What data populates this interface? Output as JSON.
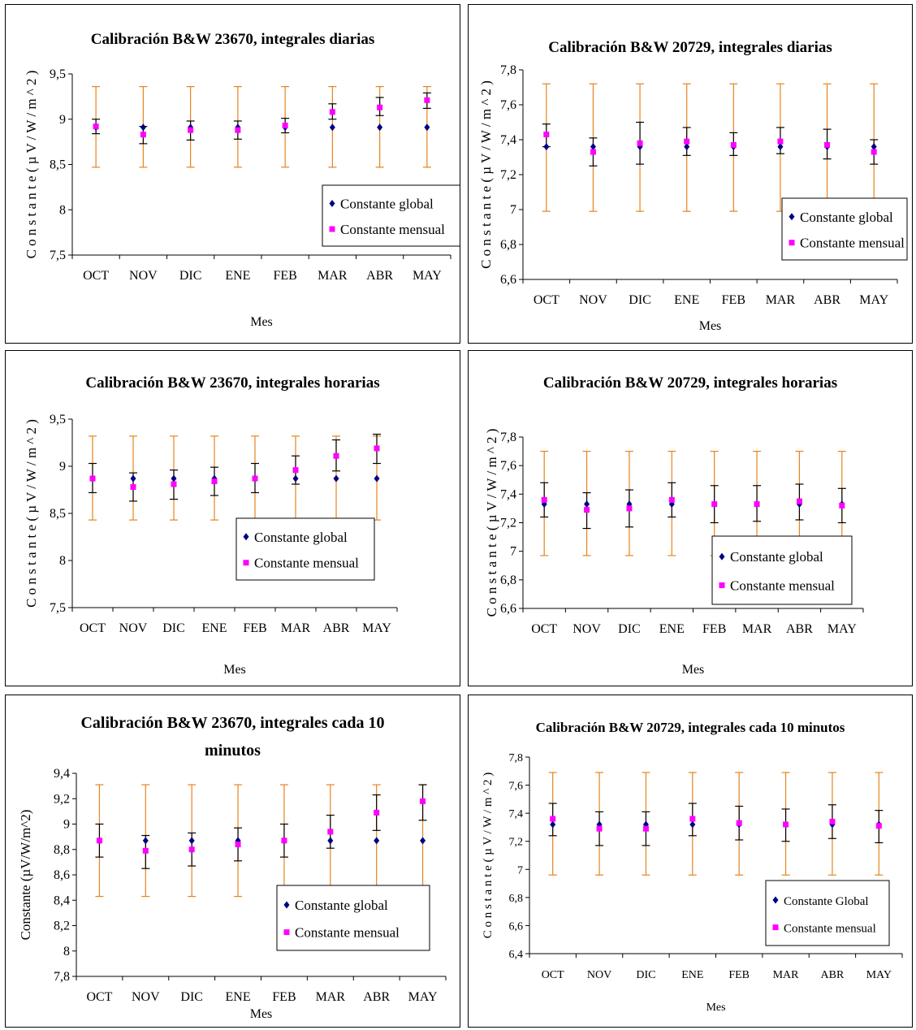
{
  "chart_data": [
    {
      "type": "scatter",
      "title": "Calibración B&W 23670, integrales diarias",
      "xlabel": "Mes",
      "ylabel": "C o n s t a n t e  ( µ V / W / m ^ 2 )",
      "categories": [
        "OCT",
        "NOV",
        "DIC",
        "ENE",
        "FEB",
        "MAR",
        "ABR",
        "MAY"
      ],
      "yticks": [
        "7,5",
        "8",
        "8,5",
        "9",
        "9,5"
      ],
      "ylim": [
        7.5,
        9.5
      ],
      "legend": "bottom-right",
      "series": [
        {
          "name": "Constante global",
          "marker": "diamond",
          "color": "#000080",
          "values": [
            8.91,
            8.91,
            8.91,
            8.91,
            8.91,
            8.91,
            8.91,
            8.91
          ],
          "err_low": [
            8.47,
            8.47,
            8.47,
            8.47,
            8.47,
            8.47,
            8.47,
            8.47
          ],
          "err_high": [
            9.36,
            9.36,
            9.36,
            9.36,
            9.36,
            9.36,
            9.36,
            9.36
          ]
        },
        {
          "name": "Constante mensual",
          "marker": "square",
          "color": "#ff00ff",
          "values": [
            8.92,
            8.83,
            8.88,
            8.88,
            8.93,
            9.08,
            9.13,
            9.21
          ],
          "err_low": [
            8.84,
            8.73,
            8.77,
            8.78,
            8.85,
            9.0,
            9.04,
            9.12
          ],
          "err_high": [
            9.0,
            8.92,
            8.98,
            8.98,
            9.01,
            9.17,
            9.24,
            9.29
          ]
        }
      ]
    },
    {
      "type": "scatter",
      "title": "Calibración B&W 20729, integrales diarias",
      "xlabel": "Mes",
      "ylabel": "C o n s t a n t e  ( µ V / W / m ^ 2 )",
      "categories": [
        "OCT",
        "NOV",
        "DIC",
        "ENE",
        "FEB",
        "MAR",
        "ABR",
        "MAY"
      ],
      "yticks": [
        "6,6",
        "6,8",
        "7",
        "7,2",
        "7,4",
        "7,6",
        "7,8"
      ],
      "ylim": [
        6.6,
        7.8
      ],
      "legend": "bottom-right",
      "series": [
        {
          "name": "Constante global",
          "marker": "diamond",
          "color": "#000080",
          "values": [
            7.36,
            7.36,
            7.36,
            7.36,
            7.36,
            7.36,
            7.36,
            7.36
          ],
          "err_low": [
            6.99,
            6.99,
            6.99,
            6.99,
            6.99,
            6.99,
            6.99,
            6.99
          ],
          "err_high": [
            7.72,
            7.72,
            7.72,
            7.72,
            7.72,
            7.72,
            7.72,
            7.72
          ]
        },
        {
          "name": "Constante mensual",
          "marker": "square",
          "color": "#ff00ff",
          "values": [
            7.43,
            7.33,
            7.38,
            7.39,
            7.37,
            7.39,
            7.37,
            7.33
          ],
          "err_low": [
            7.36,
            7.25,
            7.26,
            7.31,
            7.31,
            7.32,
            7.29,
            7.26
          ],
          "err_high": [
            7.49,
            7.41,
            7.5,
            7.47,
            7.44,
            7.47,
            7.46,
            7.4
          ]
        }
      ]
    },
    {
      "type": "scatter",
      "title": "Calibración B&W 23670, integrales horarias",
      "xlabel": "Mes",
      "ylabel": "C o n s t a n t e  ( µ V / W / m ^ 2 )",
      "categories": [
        "OCT",
        "NOV",
        "DIC",
        "ENE",
        "FEB",
        "MAR",
        "ABR",
        "MAY"
      ],
      "yticks": [
        "7,5",
        "8",
        "8,5",
        "9",
        "9,5"
      ],
      "ylim": [
        7.5,
        9.5
      ],
      "legend": "bottom-right",
      "series": [
        {
          "name": "Constante global",
          "marker": "diamond",
          "color": "#000080",
          "values": [
            8.87,
            8.87,
            8.87,
            8.87,
            8.87,
            8.87,
            8.87,
            8.87
          ],
          "err_low": [
            8.43,
            8.43,
            8.43,
            8.43,
            8.43,
            8.43,
            8.43,
            8.43
          ],
          "err_high": [
            9.32,
            9.32,
            9.32,
            9.32,
            9.32,
            9.32,
            9.32,
            9.32
          ]
        },
        {
          "name": "Constante mensual",
          "marker": "square",
          "color": "#ff00ff",
          "values": [
            8.87,
            8.78,
            8.81,
            8.84,
            8.87,
            8.96,
            9.11,
            9.19
          ],
          "err_low": [
            8.72,
            8.63,
            8.65,
            8.69,
            8.72,
            8.81,
            8.95,
            9.03
          ],
          "err_high": [
            9.03,
            8.93,
            8.96,
            8.99,
            9.03,
            9.11,
            9.28,
            9.34
          ]
        }
      ]
    },
    {
      "type": "scatter",
      "title": "Calibración B&W 20729, integrales horarias",
      "xlabel": "Mes",
      "ylabel": "C o n s t a n t e  ( µ V / W / m ^ 2 )",
      "categories": [
        "OCT",
        "NOV",
        "DIC",
        "ENE",
        "FEB",
        "MAR",
        "ABR",
        "MAY"
      ],
      "yticks": [
        "6,6",
        "6,8",
        "7",
        "7,2",
        "7,4",
        "7,6",
        "7,8"
      ],
      "ylim": [
        6.6,
        7.8
      ],
      "legend": "bottom-right",
      "series": [
        {
          "name": "Constante global",
          "marker": "diamond",
          "color": "#000080",
          "values": [
            7.33,
            7.33,
            7.33,
            7.33,
            7.33,
            7.33,
            7.33,
            7.33
          ],
          "err_low": [
            6.97,
            6.97,
            6.97,
            6.97,
            6.97,
            6.97,
            6.97,
            6.97
          ],
          "err_high": [
            7.7,
            7.7,
            7.7,
            7.7,
            7.7,
            7.7,
            7.7,
            7.7
          ]
        },
        {
          "name": "Constante mensual",
          "marker": "square",
          "color": "#ff00ff",
          "values": [
            7.36,
            7.29,
            7.3,
            7.36,
            7.33,
            7.33,
            7.35,
            7.32
          ],
          "err_low": [
            7.24,
            7.16,
            7.17,
            7.24,
            7.2,
            7.21,
            7.22,
            7.2
          ],
          "err_high": [
            7.48,
            7.41,
            7.43,
            7.48,
            7.46,
            7.46,
            7.47,
            7.44
          ]
        }
      ]
    },
    {
      "type": "scatter",
      "title": "Calibración B&W 23670, integrales cada 10",
      "title_line2": "minutos",
      "xlabel": "Mes",
      "ylabel": "Constante (µV/W/m^2)",
      "categories": [
        "OCT",
        "NOV",
        "DIC",
        "ENE",
        "FEB",
        "MAR",
        "ABR",
        "MAY"
      ],
      "yticks": [
        "7,8",
        "8",
        "8,2",
        "8,4",
        "8,6",
        "8,8",
        "9",
        "9,2",
        "9,4"
      ],
      "ylim": [
        7.8,
        9.4
      ],
      "legend": "bottom-right",
      "series": [
        {
          "name": "Constante global",
          "marker": "diamond",
          "color": "#000080",
          "values": [
            8.87,
            8.87,
            8.87,
            8.87,
            8.87,
            8.87,
            8.87,
            8.87
          ],
          "err_low": [
            8.43,
            8.43,
            8.43,
            8.43,
            8.43,
            8.43,
            8.43,
            8.43
          ],
          "err_high": [
            9.31,
            9.31,
            9.31,
            9.31,
            9.31,
            9.31,
            9.31,
            9.31
          ]
        },
        {
          "name": "Constante mensual",
          "marker": "square",
          "color": "#ff00ff",
          "values": [
            8.87,
            8.79,
            8.8,
            8.84,
            8.87,
            8.94,
            9.09,
            9.18
          ],
          "err_low": [
            8.74,
            8.65,
            8.67,
            8.71,
            8.74,
            8.81,
            8.95,
            9.03
          ],
          "err_high": [
            9.0,
            8.91,
            8.93,
            8.97,
            9.0,
            9.07,
            9.23,
            9.31
          ]
        }
      ]
    },
    {
      "type": "scatter",
      "title": "Calibración B&W 20729, integrales cada 10 minutos",
      "xlabel": "Mes",
      "ylabel": "C o n s t a n t e  ( µ V / W / m ^ 2 )",
      "categories": [
        "OCT",
        "NOV",
        "DIC",
        "ENE",
        "FEB",
        "MAR",
        "ABR",
        "MAY"
      ],
      "yticks": [
        "6,4",
        "6,6",
        "6,8",
        "7",
        "7,2",
        "7,4",
        "7,6",
        "7,8"
      ],
      "ylim": [
        6.4,
        7.8
      ],
      "legend": "bottom-right",
      "series": [
        {
          "name": "Constante Global",
          "marker": "diamond",
          "color": "#000080",
          "values": [
            7.32,
            7.32,
            7.32,
            7.32,
            7.32,
            7.32,
            7.32,
            7.32
          ],
          "err_low": [
            6.96,
            6.96,
            6.96,
            6.96,
            6.96,
            6.96,
            6.96,
            6.96
          ],
          "err_high": [
            7.69,
            7.69,
            7.69,
            7.69,
            7.69,
            7.69,
            7.69,
            7.69
          ]
        },
        {
          "name": "Constante mensual",
          "marker": "square",
          "color": "#ff00ff",
          "values": [
            7.36,
            7.29,
            7.29,
            7.36,
            7.33,
            7.32,
            7.34,
            7.31
          ],
          "err_low": [
            7.24,
            7.17,
            7.17,
            7.24,
            7.21,
            7.2,
            7.22,
            7.19
          ],
          "err_high": [
            7.47,
            7.41,
            7.41,
            7.47,
            7.45,
            7.43,
            7.46,
            7.42
          ]
        }
      ]
    }
  ]
}
